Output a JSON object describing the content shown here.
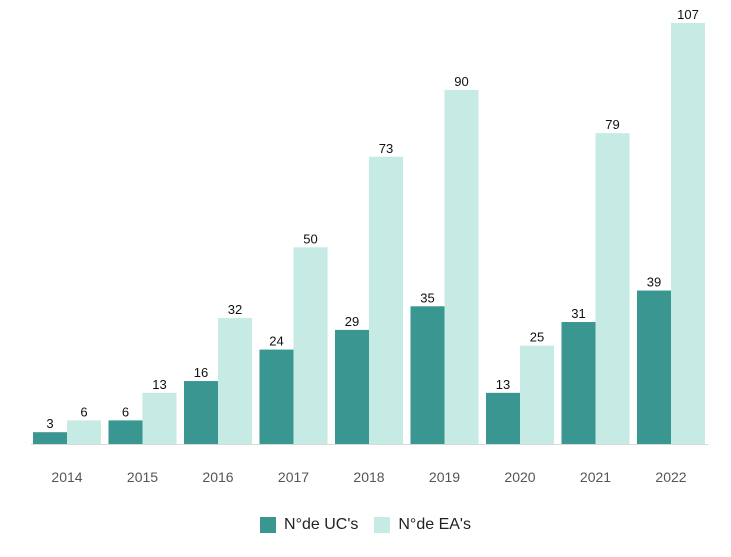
{
  "chart_data": {
    "type": "bar",
    "categories": [
      "2014",
      "2015",
      "2016",
      "2017",
      "2018",
      "2019",
      "2020",
      "2021",
      "2022"
    ],
    "series": [
      {
        "name": "N°de UC's",
        "color": "#3a9690",
        "values": [
          3,
          6,
          16,
          24,
          29,
          35,
          13,
          31,
          39
        ]
      },
      {
        "name": "N°de EA's",
        "color": "#c6eae4",
        "values": [
          6,
          13,
          32,
          50,
          73,
          90,
          25,
          79,
          107
        ]
      }
    ],
    "title": "",
    "xlabel": "",
    "ylabel": "",
    "ylim": [
      0,
      107
    ],
    "grid": false,
    "data_labels": true,
    "legend_position": "bottom"
  }
}
